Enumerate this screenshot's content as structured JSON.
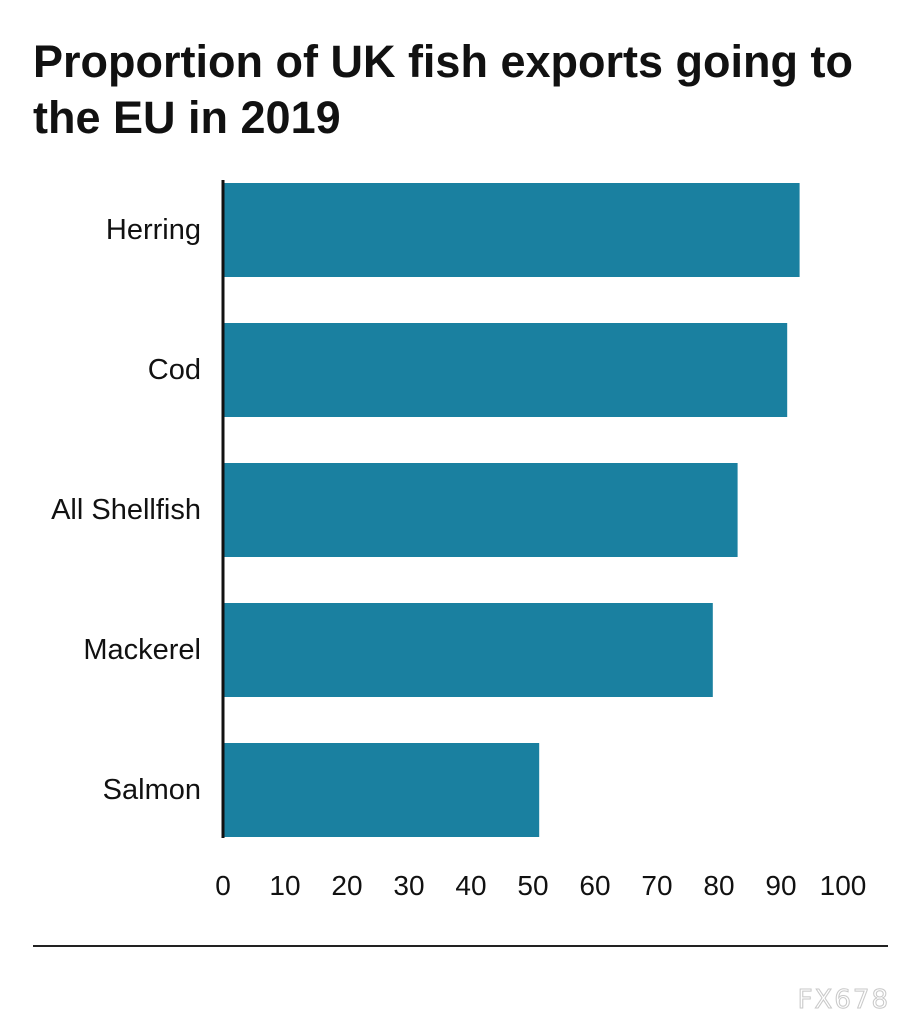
{
  "chart_data": {
    "type": "bar",
    "orientation": "horizontal",
    "title": "Proportion of UK fish exports going to the EU in 2019",
    "categories": [
      "Herring",
      "Cod",
      "All Shellfish",
      "Mackerel",
      "Salmon"
    ],
    "values": [
      93,
      91,
      83,
      79,
      51
    ],
    "xlabel": "",
    "ylabel": "",
    "xlim": [
      0,
      100
    ],
    "xticks": [
      0,
      10,
      20,
      30,
      40,
      50,
      60,
      70,
      80,
      90,
      100
    ],
    "grid": false,
    "legend": "none",
    "bar_color": "#1a80a0"
  },
  "watermark": "FX678"
}
